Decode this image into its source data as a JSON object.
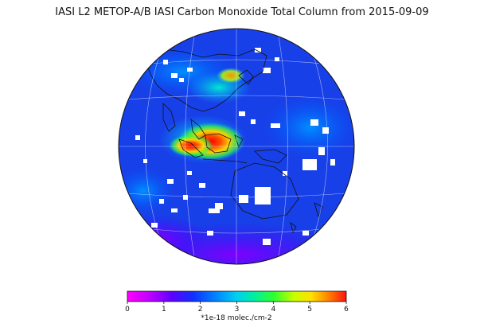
{
  "title": "IASI L2 METOP-A/B IASI Carbon Monoxide Total Column from 2015-09-09",
  "colorbar": {
    "ticks": [
      "0",
      "1",
      "2",
      "3",
      "4",
      "5",
      "6"
    ],
    "unit": "*1e-18 molec./cm-2",
    "min": 0,
    "max": 6,
    "colors": [
      "#ff00ff",
      "#b000ff",
      "#3a00ff",
      "#0050ff",
      "#00b0ff",
      "#00e8c0",
      "#30ff30",
      "#c8ff00",
      "#ffe000",
      "#ff8000",
      "#ff1010"
    ]
  },
  "map": {
    "projection": "orthographic",
    "background_color": "#1840e8",
    "missing_data_color": "#ffffff",
    "coastline_color": "#111111",
    "graticule": true
  }
}
